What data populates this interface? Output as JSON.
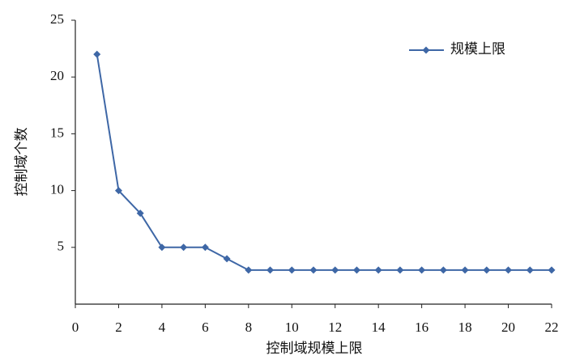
{
  "chart_data": {
    "type": "line",
    "x_label": "控制域规模上限",
    "y_label": "控制域个数",
    "x": [
      1,
      2,
      3,
      4,
      5,
      6,
      7,
      8,
      9,
      10,
      11,
      12,
      13,
      14,
      15,
      16,
      17,
      18,
      19,
      20,
      21,
      22
    ],
    "series": [
      {
        "name": "规模上限",
        "color": "#3e67a6",
        "values": [
          22,
          10,
          8,
          5,
          5,
          5,
          4,
          3,
          3,
          3,
          3,
          3,
          3,
          3,
          3,
          3,
          3,
          3,
          3,
          3,
          3,
          3
        ]
      }
    ],
    "xlim": [
      0,
      22
    ],
    "xticks": [
      0,
      2,
      4,
      6,
      8,
      10,
      12,
      14,
      16,
      18,
      20,
      22
    ],
    "ylim": [
      0,
      25
    ],
    "yticks": [
      5,
      10,
      15,
      20,
      25
    ],
    "legend": "upper right"
  }
}
